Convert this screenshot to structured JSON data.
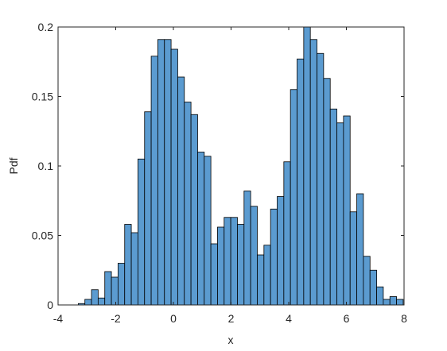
{
  "chart_data": {
    "type": "histogram",
    "xlabel": "x",
    "ylabel": "Pdf",
    "bins": [
      -3.3,
      -3.07,
      -2.84,
      -2.61,
      -2.38,
      -2.15,
      -1.92,
      -1.69,
      -1.46,
      -1.23,
      -1.0,
      -0.77,
      -0.54,
      -0.31,
      -0.08,
      0.15,
      0.38,
      0.61,
      0.84,
      1.07,
      1.3,
      1.53,
      1.76,
      1.99,
      2.22,
      2.45,
      2.68,
      2.91,
      3.14,
      3.37,
      3.6,
      3.83,
      4.06,
      4.29,
      4.52,
      4.75,
      4.98,
      5.21,
      5.44,
      5.67,
      5.9,
      6.13,
      6.36,
      6.59,
      6.82,
      7.05,
      7.28,
      7.51,
      7.74,
      7.97
    ],
    "values": [
      0.001,
      0.004,
      0.011,
      0.005,
      0.024,
      0.02,
      0.03,
      0.058,
      0.052,
      0.105,
      0.139,
      0.179,
      0.191,
      0.191,
      0.184,
      0.164,
      0.146,
      0.137,
      0.11,
      0.107,
      0.044,
      0.056,
      0.063,
      0.063,
      0.058,
      0.082,
      0.071,
      0.036,
      0.043,
      0.069,
      0.078,
      0.103,
      0.155,
      0.177,
      0.2,
      0.191,
      0.181,
      0.163,
      0.141,
      0.131,
      0.136,
      0.067,
      0.08,
      0.035,
      0.025,
      0.013,
      0.004,
      0.006,
      0.004
    ],
    "color": "#5b9bd0",
    "xlim": [
      -4,
      8
    ],
    "xticks": [
      -4,
      -2,
      0,
      2,
      4,
      6,
      8
    ],
    "ylim": [
      0,
      0.2
    ],
    "yticks": [
      0,
      0.05,
      0.1,
      0.15,
      0.2
    ]
  }
}
